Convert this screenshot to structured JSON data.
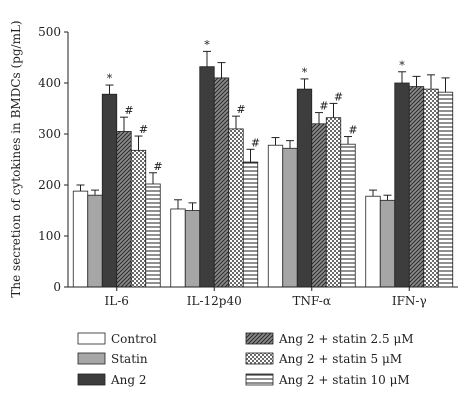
{
  "chart_data": {
    "type": "bar",
    "ylabel": "The secretion of cytokines in BMDCs (pg/mL)",
    "xlabel": "",
    "ylim": [
      0,
      500
    ],
    "yticks": [
      0,
      100,
      200,
      300,
      400,
      500
    ],
    "categories": [
      "IL-6",
      "IL-12p40",
      "TNF-α",
      "IFN-γ"
    ],
    "legend_placement": "bottom",
    "series": [
      {
        "name": "Control",
        "pattern": "white",
        "values": [
          188,
          153,
          278,
          178
        ],
        "errors": [
          12,
          18,
          15,
          12
        ]
      },
      {
        "name": "Statin",
        "pattern": "gray",
        "values": [
          180,
          150,
          272,
          170
        ],
        "errors": [
          10,
          15,
          15,
          10
        ]
      },
      {
        "name": "Ang 2",
        "pattern": "dark",
        "values": [
          378,
          432,
          388,
          400
        ],
        "errors": [
          18,
          30,
          20,
          22
        ]
      },
      {
        "name": "Ang 2 + statin 2.5 μM",
        "pattern": "diagonal",
        "values": [
          305,
          410,
          320,
          393
        ],
        "errors": [
          28,
          30,
          22,
          20
        ]
      },
      {
        "name": "Ang 2 + statin 5 μM",
        "pattern": "checker",
        "values": [
          268,
          310,
          332,
          388
        ],
        "errors": [
          28,
          25,
          28,
          28
        ]
      },
      {
        "name": "Ang 2 + statin 10 μM",
        "pattern": "horizontal",
        "values": [
          202,
          245,
          280,
          382
        ],
        "errors": [
          22,
          25,
          15,
          28
        ]
      }
    ],
    "annotations": [
      {
        "category": "IL-6",
        "series": "Ang 2",
        "text": "*"
      },
      {
        "category": "IL-6",
        "series": "Ang 2 + statin 2.5 μM",
        "text": "#"
      },
      {
        "category": "IL-6",
        "series": "Ang 2 + statin 5 μM",
        "text": "#"
      },
      {
        "category": "IL-6",
        "series": "Ang 2 + statin 10 μM",
        "text": "#"
      },
      {
        "category": "IL-12p40",
        "series": "Ang 2",
        "text": "*"
      },
      {
        "category": "IL-12p40",
        "series": "Ang 2 + statin 5 μM",
        "text": "#"
      },
      {
        "category": "IL-12p40",
        "series": "Ang 2 + statin 10 μM",
        "text": "#"
      },
      {
        "category": "TNF-α",
        "series": "Ang 2",
        "text": "*"
      },
      {
        "category": "TNF-α",
        "series": "Ang 2 + statin 2.5 μM",
        "text": "#"
      },
      {
        "category": "TNF-α",
        "series": "Ang 2 + statin 5 μM",
        "text": "#"
      },
      {
        "category": "TNF-α",
        "series": "Ang 2 + statin 10 μM",
        "text": "#"
      },
      {
        "category": "IFN-γ",
        "series": "Ang 2",
        "text": "*"
      }
    ]
  }
}
